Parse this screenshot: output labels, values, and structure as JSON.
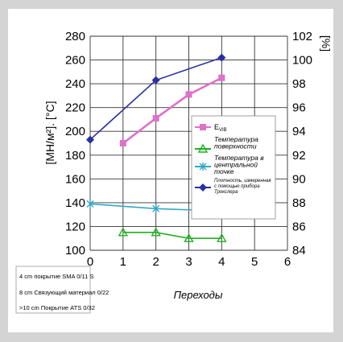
{
  "chart_data": {
    "type": "line",
    "xlabel": "Переходы",
    "x_ticks": [
      "0",
      "1",
      "2",
      "3",
      "4",
      "5",
      "6"
    ],
    "xlim": [
      0,
      6
    ],
    "y_left": {
      "label": "[МН/м²]. [°C]",
      "ticks": [
        "100",
        "120",
        "140",
        "160",
        "180",
        "200",
        "220",
        "240",
        "260",
        "280"
      ],
      "ylim": [
        100,
        280
      ]
    },
    "y_right": {
      "label": "[%]",
      "ticks": [
        "84",
        "86",
        "88",
        "90",
        "92",
        "94",
        "96",
        "98",
        "100",
        "102"
      ],
      "ylim": [
        84,
        102
      ]
    },
    "grid": true,
    "legend_position": "right",
    "series": [
      {
        "name": "E_VIB",
        "name_main": "E",
        "name_sub": "VIB",
        "axis": "left",
        "marker": "square",
        "color": "#e070c8",
        "x": [
          1,
          2,
          3,
          4
        ],
        "y": [
          190,
          211,
          231,
          245
        ]
      },
      {
        "name": "Температура поверхности",
        "legend_lines": [
          "Температура",
          "поверхности"
        ],
        "axis": "left",
        "marker": "triangle",
        "color": "#20b020",
        "x": [
          1,
          2,
          3,
          4
        ],
        "y": [
          115,
          115,
          110,
          110
        ]
      },
      {
        "name": "Температура в центральной точке",
        "legend_lines": [
          "Температура в",
          "центральной",
          "точке"
        ],
        "axis": "left",
        "marker": "star",
        "color": "#30a8c8",
        "x": [
          0,
          2,
          4
        ],
        "y": [
          139,
          135,
          133
        ]
      },
      {
        "name": "Плотность, измеренная с помощью прибора Трокслера",
        "legend_lines": [
          "Плотность, измеренная",
          "с помощью прибора",
          "Трокслера"
        ],
        "axis": "right",
        "marker": "diamond",
        "color": "#2830a0",
        "x": [
          0,
          2,
          4
        ],
        "y": [
          93.3,
          98.3,
          100.2
        ]
      }
    ]
  },
  "notes": [
    "4 cm покрытие SMA 0/11 S",
    "8 cm Связующий материал 0/22",
    ">10 cm Покрытие ATS 0/32"
  ]
}
